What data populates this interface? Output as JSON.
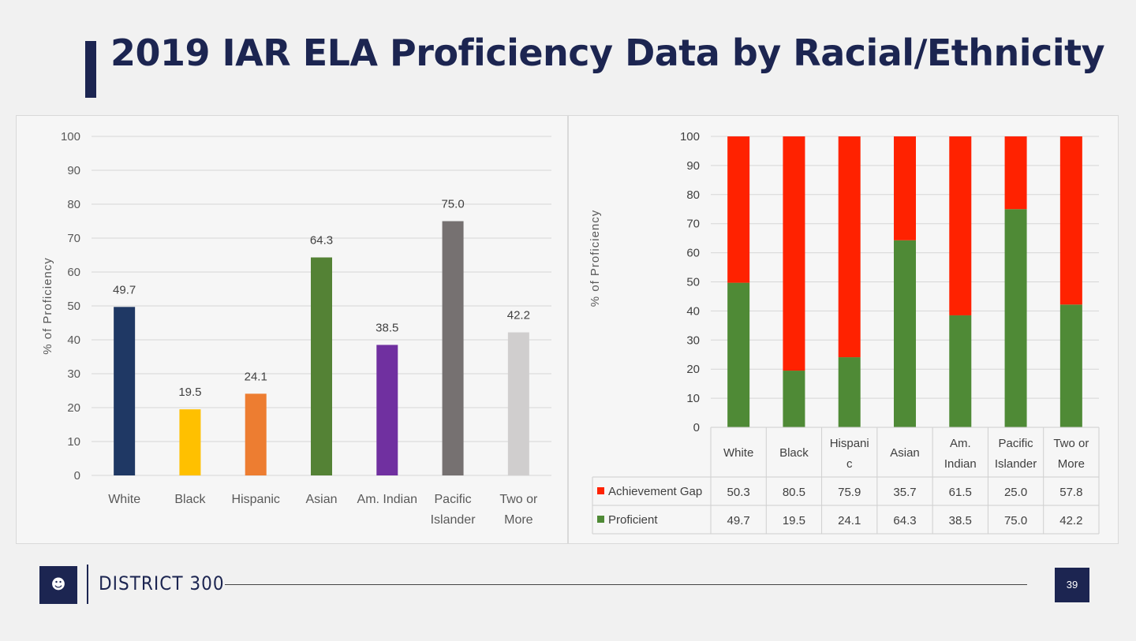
{
  "slide": {
    "title": "2019 IAR ELA Proficiency Data by Racial/Ethnicity",
    "footer_brand": "DISTRICT 300",
    "page_number": "39"
  },
  "colors": {
    "navy": "#1c2551",
    "achievement_gap": "#ff2200",
    "proficient": "#4f8a36"
  },
  "chart_data": [
    {
      "type": "bar",
      "title": "",
      "xlabel": "",
      "ylabel": "% of Proficiency",
      "ylim": [
        0,
        100
      ],
      "yticks": [
        0,
        10,
        20,
        30,
        40,
        50,
        60,
        70,
        80,
        90,
        100
      ],
      "grid": true,
      "categories": [
        "White",
        "Black",
        "Hispanic",
        "Asian",
        "Am. Indian",
        "Pacific Islander",
        "Two or More"
      ],
      "values": [
        49.7,
        19.5,
        24.1,
        64.3,
        38.5,
        75.0,
        42.2
      ],
      "value_labels": [
        "49.7",
        "19.5",
        "24.1",
        "64.3",
        "38.5",
        "75.0",
        "42.2"
      ],
      "bar_colors": [
        "#1f3864",
        "#ffc000",
        "#ed7d31",
        "#548235",
        "#7030a0",
        "#767171",
        "#d0cece"
      ]
    },
    {
      "type": "bar",
      "stacked": true,
      "title": "",
      "xlabel": "",
      "ylabel": "% of Proficiency",
      "ylim": [
        0,
        100
      ],
      "yticks": [
        0,
        10,
        20,
        30,
        40,
        50,
        60,
        70,
        80,
        90,
        100
      ],
      "grid": true,
      "categories": [
        "White",
        "Black",
        "Hispanic",
        "Asian",
        "Am. Indian",
        "Pacific Islander",
        "Two or More"
      ],
      "category_labels": [
        [
          "White"
        ],
        [
          "Black"
        ],
        [
          "Hispani",
          "c"
        ],
        [
          "Asian"
        ],
        [
          "Am.",
          "Indian"
        ],
        [
          "Pacific",
          "Islander"
        ],
        [
          "Two or",
          "More"
        ]
      ],
      "series": [
        {
          "name": "Achievement Gap",
          "color": "#ff2200",
          "values": [
            50.3,
            80.5,
            75.9,
            35.7,
            61.5,
            25.0,
            57.8
          ],
          "labels": [
            "50.3",
            "80.5",
            "75.9",
            "35.7",
            "61.5",
            "25.0",
            "57.8"
          ]
        },
        {
          "name": "Proficient",
          "color": "#4f8a36",
          "values": [
            49.7,
            19.5,
            24.1,
            64.3,
            38.5,
            75.0,
            42.2
          ],
          "labels": [
            "49.7",
            "19.5",
            "24.1",
            "64.3",
            "38.5",
            "75.0",
            "42.2"
          ]
        }
      ]
    }
  ]
}
